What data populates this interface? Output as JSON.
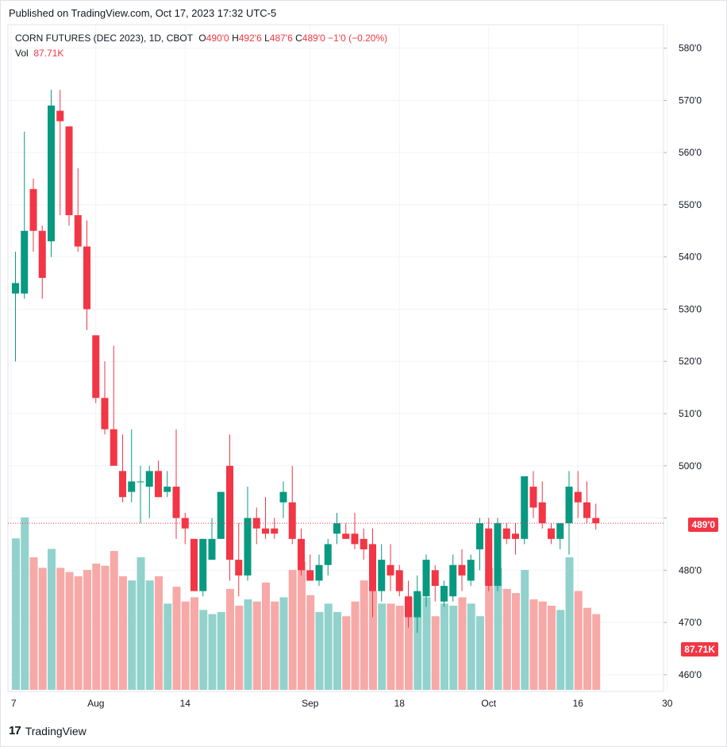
{
  "published": "Published on TradingView.com, Oct 17, 2023 17:32 UTC-5",
  "brand": "TradingView",
  "legend": {
    "symbol": "CORN FUTURES (DEC 2023), 1D, CBOT",
    "o_label": "O",
    "o_value": "490'0",
    "h_label": "H",
    "h_value": "492'6",
    "l_label": "L",
    "l_value": "487'6",
    "c_label": "C",
    "c_value": "489'0",
    "change": "−1'0 (−0.20%)",
    "vol_label": "Vol",
    "vol_value": "87.71K"
  },
  "price_tag": "489'0",
  "volume_tag": "87.71K",
  "colors": {
    "up": "#089981",
    "down": "#f23645",
    "up_volume": "#92d2cc",
    "down_volume": "#f7a9a7",
    "grid": "#f0f3fa",
    "last_price_line": "#f23645"
  },
  "chart_data": {
    "type": "candlestick",
    "y_ticks": [
      "460'0",
      "470'0",
      "480'0",
      "490'0",
      "500'0",
      "510'0",
      "520'0",
      "530'0",
      "540'0",
      "550'0",
      "560'0",
      "570'0",
      "580'0"
    ],
    "y_tick_values": [
      460,
      470,
      480,
      490,
      500,
      510,
      520,
      530,
      540,
      550,
      560,
      570,
      580
    ],
    "ylim": [
      458,
      582
    ],
    "x_ticks": [
      {
        "label": "7",
        "index": -0.5
      },
      {
        "label": "Aug",
        "index": 9
      },
      {
        "label": "14",
        "index": 19
      },
      {
        "label": "Sep",
        "index": 33
      },
      {
        "label": "18",
        "index": 43
      },
      {
        "label": "Oct",
        "index": 53
      },
      {
        "label": "16",
        "index": 63
      },
      {
        "label": "30",
        "index": 73
      }
    ],
    "last_price": 489,
    "series": [
      {
        "date": "Jul 17",
        "o": 533,
        "h": 541,
        "l": 520,
        "c": 535,
        "v": 72
      },
      {
        "date": "Jul 18",
        "o": 533,
        "h": 564,
        "l": 532,
        "c": 545,
        "v": 82
      },
      {
        "date": "Jul 19",
        "o": 553,
        "h": 555,
        "l": 541,
        "c": 545,
        "v": 63
      },
      {
        "date": "Jul 20",
        "o": 545,
        "h": 546,
        "l": 532,
        "c": 536,
        "v": 58
      },
      {
        "date": "Jul 21",
        "o": 543,
        "h": 572,
        "l": 540,
        "c": 569,
        "v": 67
      },
      {
        "date": "Jul 24",
        "o": 568,
        "h": 572,
        "l": 548,
        "c": 566,
        "v": 58
      },
      {
        "date": "Jul 25",
        "o": 565,
        "h": 565,
        "l": 546,
        "c": 548,
        "v": 56
      },
      {
        "date": "Jul 26",
        "o": 548,
        "h": 557,
        "l": 541,
        "c": 542,
        "v": 54
      },
      {
        "date": "Jul 27",
        "o": 542,
        "h": 547,
        "l": 526,
        "c": 530,
        "v": 57
      },
      {
        "date": "Jul 28",
        "o": 525,
        "h": 525,
        "l": 512,
        "c": 513,
        "v": 60
      },
      {
        "date": "Jul 31",
        "o": 513,
        "h": 520,
        "l": 506,
        "c": 507,
        "v": 59
      },
      {
        "date": "Aug 1",
        "o": 507,
        "h": 523,
        "l": 500,
        "c": 500,
        "v": 66
      },
      {
        "date": "Aug 2",
        "o": 499,
        "h": 506,
        "l": 493,
        "c": 494,
        "v": 54
      },
      {
        "date": "Aug 3",
        "o": 495,
        "h": 507,
        "l": 493,
        "c": 497,
        "v": 52
      },
      {
        "date": "Aug 4",
        "o": 497,
        "h": 500,
        "l": 489,
        "c": 497,
        "v": 63
      },
      {
        "date": "Aug 7",
        "o": 496,
        "h": 500,
        "l": 490,
        "c": 499,
        "v": 52
      },
      {
        "date": "Aug 8",
        "o": 499,
        "h": 501,
        "l": 494,
        "c": 494,
        "v": 54
      },
      {
        "date": "Aug 9",
        "o": 495,
        "h": 499,
        "l": 494,
        "c": 496,
        "v": 41
      },
      {
        "date": "Aug 10",
        "o": 496,
        "h": 507,
        "l": 486,
        "c": 490,
        "v": 49
      },
      {
        "date": "Aug 11",
        "o": 490,
        "h": 491,
        "l": 485,
        "c": 488,
        "v": 42
      },
      {
        "date": "Aug 14",
        "o": 486,
        "h": 486,
        "l": 476,
        "c": 476,
        "v": 44
      },
      {
        "date": "Aug 15",
        "o": 476,
        "h": 486,
        "l": 475,
        "c": 486,
        "v": 38
      },
      {
        "date": "Aug 16",
        "o": 482,
        "h": 490,
        "l": 482,
        "c": 486,
        "v": 36
      },
      {
        "date": "Aug 17",
        "o": 486,
        "h": 495,
        "l": 486,
        "c": 495,
        "v": 37
      },
      {
        "date": "Aug 18",
        "o": 500,
        "h": 506,
        "l": 478,
        "c": 482,
        "v": 48
      },
      {
        "date": "Aug 19",
        "o": 482,
        "h": 489,
        "l": 475,
        "c": 479,
        "v": 40
      },
      {
        "date": "Aug 22",
        "o": 479,
        "h": 496,
        "l": 478,
        "c": 490,
        "v": 43
      },
      {
        "date": "Aug 23",
        "o": 490,
        "h": 492,
        "l": 485,
        "c": 488,
        "v": 42
      },
      {
        "date": "Aug 24",
        "o": 488,
        "h": 494,
        "l": 486,
        "c": 487,
        "v": 51
      },
      {
        "date": "Aug 25",
        "o": 488,
        "h": 490,
        "l": 486,
        "c": 487,
        "v": 42
      },
      {
        "date": "Aug 28",
        "o": 493,
        "h": 497,
        "l": 490,
        "c": 495,
        "v": 44
      },
      {
        "date": "Aug 29",
        "o": 493,
        "h": 500,
        "l": 485,
        "c": 486,
        "v": 57
      },
      {
        "date": "Aug 30",
        "o": 486,
        "h": 488,
        "l": 479,
        "c": 480,
        "v": 61
      },
      {
        "date": "Aug 31",
        "o": 480,
        "h": 483,
        "l": 478,
        "c": 478,
        "v": 45
      },
      {
        "date": "Sep 1",
        "o": 478,
        "h": 483,
        "l": 477,
        "c": 481,
        "v": 37
      },
      {
        "date": "Sep 5",
        "o": 481,
        "h": 486,
        "l": 479,
        "c": 485,
        "v": 41
      },
      {
        "date": "Sep 6",
        "o": 487,
        "h": 491,
        "l": 485,
        "c": 489,
        "v": 37
      },
      {
        "date": "Sep 7",
        "o": 487,
        "h": 489,
        "l": 486,
        "c": 486,
        "v": 35
      },
      {
        "date": "Sep 8",
        "o": 487,
        "h": 491,
        "l": 484,
        "c": 485,
        "v": 42
      },
      {
        "date": "Sep 11",
        "o": 486,
        "h": 488,
        "l": 482,
        "c": 484,
        "v": 52
      },
      {
        "date": "Sep 12",
        "o": 485,
        "h": 488,
        "l": 471,
        "c": 476,
        "v": 47
      },
      {
        "date": "Sep 13",
        "o": 476,
        "h": 485,
        "l": 474,
        "c": 482,
        "v": 41
      },
      {
        "date": "Sep 14",
        "o": 481,
        "h": 485,
        "l": 476,
        "c": 479,
        "v": 41
      },
      {
        "date": "Sep 15",
        "o": 480,
        "h": 481,
        "l": 475,
        "c": 476,
        "v": 40
      },
      {
        "date": "Sep 18",
        "o": 475,
        "h": 478,
        "l": 469,
        "c": 471,
        "v": 44
      },
      {
        "date": "Sep 19",
        "o": 471,
        "h": 479,
        "l": 468,
        "c": 476,
        "v": 45
      },
      {
        "date": "Sep 20",
        "o": 475,
        "h": 483,
        "l": 473,
        "c": 482,
        "v": 44
      },
      {
        "date": "Sep 21",
        "o": 480,
        "h": 481,
        "l": 474,
        "c": 477,
        "v": 35
      },
      {
        "date": "Sep 22",
        "o": 474,
        "h": 478,
        "l": 473,
        "c": 477,
        "v": 41
      },
      {
        "date": "Sep 25",
        "o": 475,
        "h": 483,
        "l": 474,
        "c": 481,
        "v": 40
      },
      {
        "date": "Sep 26",
        "o": 481,
        "h": 484,
        "l": 476,
        "c": 479,
        "v": 44
      },
      {
        "date": "Sep 27",
        "o": 478,
        "h": 483,
        "l": 477,
        "c": 482,
        "v": 41
      },
      {
        "date": "Sep 28",
        "o": 484,
        "h": 490,
        "l": 480,
        "c": 489,
        "v": 35
      },
      {
        "date": "Sep 29",
        "o": 488,
        "h": 490,
        "l": 476,
        "c": 477,
        "v": 58
      },
      {
        "date": "Oct 2",
        "o": 477,
        "h": 490,
        "l": 476,
        "c": 489,
        "v": 58
      },
      {
        "date": "Oct 3",
        "o": 488,
        "h": 489,
        "l": 485,
        "c": 486,
        "v": 48
      },
      {
        "date": "Oct 4",
        "o": 487,
        "h": 489,
        "l": 483,
        "c": 486,
        "v": 46
      },
      {
        "date": "Oct 5",
        "o": 486,
        "h": 498,
        "l": 485,
        "c": 498,
        "v": 57
      },
      {
        "date": "Oct 6",
        "o": 496,
        "h": 499,
        "l": 490,
        "c": 492,
        "v": 43
      },
      {
        "date": "Oct 9",
        "o": 493,
        "h": 497,
        "l": 488,
        "c": 489,
        "v": 42
      },
      {
        "date": "Oct 10",
        "o": 488,
        "h": 489,
        "l": 485,
        "c": 486,
        "v": 40
      },
      {
        "date": "Oct 11",
        "o": 486,
        "h": 489,
        "l": 484,
        "c": 489,
        "v": 38
      },
      {
        "date": "Oct 12",
        "o": 489,
        "h": 499,
        "l": 483,
        "c": 496,
        "v": 63
      },
      {
        "date": "Oct 13",
        "o": 495,
        "h": 499,
        "l": 490,
        "c": 493,
        "v": 47
      },
      {
        "date": "Oct 16",
        "o": 493,
        "h": 497,
        "l": 489,
        "c": 490,
        "v": 39
      },
      {
        "date": "Oct 17",
        "o": 490,
        "h": 492.75,
        "l": 487.75,
        "c": 489,
        "v": 36
      }
    ]
  }
}
